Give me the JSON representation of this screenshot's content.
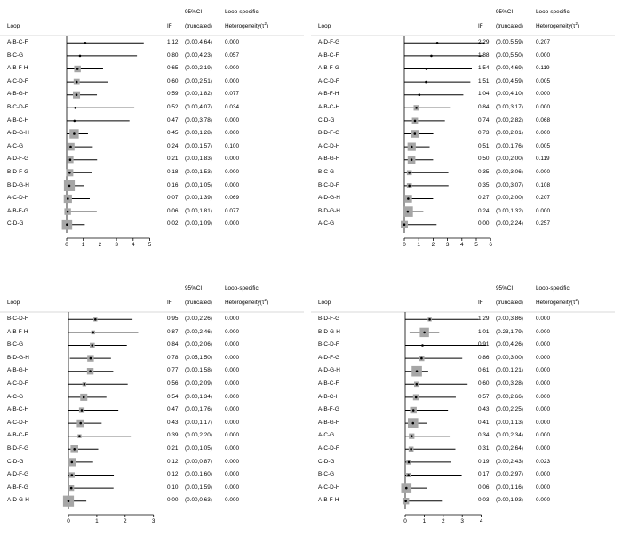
{
  "headers": {
    "loop": "Loop",
    "if": "IF",
    "ci_line1": "95%CI",
    "ci_line2": "(truncated)",
    "het_line1": "Loop-specific",
    "het_line2": "Heterogeneity(τ",
    "het_sup": "2",
    "het_close": ")"
  },
  "chart_data": [
    {
      "type": "forest",
      "xticks": [
        0,
        1,
        2,
        3,
        4,
        5
      ],
      "xlim": [
        0,
        5
      ],
      "rows": [
        {
          "loop": "A-B-C-F",
          "if": 1.12,
          "if_text": "1.12",
          "lo": 0.0,
          "hi": 4.64,
          "ci_text": "(0.00,4.64)",
          "het_text": "0.000",
          "weight": 0.0
        },
        {
          "loop": "B-C-G",
          "if": 0.8,
          "if_text": "0.80",
          "lo": 0.0,
          "hi": 4.23,
          "ci_text": "(0.00,4.23)",
          "het_text": "0.057",
          "weight": 0.0
        },
        {
          "loop": "A-B-F-H",
          "if": 0.65,
          "if_text": "0.65",
          "lo": 0.0,
          "hi": 2.19,
          "ci_text": "(0.00,2.19)",
          "het_text": "0.000",
          "weight": 0.45
        },
        {
          "loop": "A-C-D-F",
          "if": 0.6,
          "if_text": "0.60",
          "lo": 0.0,
          "hi": 2.51,
          "ci_text": "(0.00,2.51)",
          "het_text": "0.000",
          "weight": 0.4
        },
        {
          "loop": "A-B-G-H",
          "if": 0.59,
          "if_text": "0.59",
          "lo": 0.0,
          "hi": 1.82,
          "ci_text": "(0.00,1.82)",
          "het_text": "0.077",
          "weight": 0.5
        },
        {
          "loop": "B-C-D-F",
          "if": 0.52,
          "if_text": "0.52",
          "lo": 0.0,
          "hi": 4.07,
          "ci_text": "(0.00,4.07)",
          "het_text": "0.034",
          "weight": 0.0
        },
        {
          "loop": "A-B-C-H",
          "if": 0.47,
          "if_text": "0.47",
          "lo": 0.0,
          "hi": 3.78,
          "ci_text": "(0.00,3.78)",
          "het_text": "0.000",
          "weight": 0.0
        },
        {
          "loop": "A-D-G-H",
          "if": 0.45,
          "if_text": "0.45",
          "lo": 0.0,
          "hi": 1.28,
          "ci_text": "(0.00,1.28)",
          "het_text": "0.000",
          "weight": 0.7
        },
        {
          "loop": "A-C-G",
          "if": 0.24,
          "if_text": "0.24",
          "lo": 0.0,
          "hi": 1.57,
          "ci_text": "(0.00,1.57)",
          "het_text": "0.100",
          "weight": 0.55
        },
        {
          "loop": "A-D-F-G",
          "if": 0.21,
          "if_text": "0.21",
          "lo": 0.0,
          "hi": 1.83,
          "ci_text": "(0.00,1.83)",
          "het_text": "0.000",
          "weight": 0.45
        },
        {
          "loop": "B-D-F-G",
          "if": 0.18,
          "if_text": "0.18",
          "lo": 0.0,
          "hi": 1.53,
          "ci_text": "(0.00,1.53)",
          "het_text": "0.000",
          "weight": 0.5
        },
        {
          "loop": "B-D-G-H",
          "if": 0.16,
          "if_text": "0.16",
          "lo": 0.0,
          "hi": 1.05,
          "ci_text": "(0.00,1.05)",
          "het_text": "0.000",
          "weight": 0.85
        },
        {
          "loop": "A-C-D-H",
          "if": 0.07,
          "if_text": "0.07",
          "lo": 0.0,
          "hi": 1.39,
          "ci_text": "(0.00,1.39)",
          "het_text": "0.069",
          "weight": 0.6
        },
        {
          "loop": "A-B-F-G",
          "if": 0.06,
          "if_text": "0.06",
          "lo": 0.0,
          "hi": 1.81,
          "ci_text": "(0.00,1.81)",
          "het_text": "0.077",
          "weight": 0.45
        },
        {
          "loop": "C-D-G",
          "if": 0.02,
          "if_text": "0.02",
          "lo": 0.0,
          "hi": 1.09,
          "ci_text": "(0.00,1.09)",
          "het_text": "0.000",
          "weight": 0.8
        }
      ]
    },
    {
      "type": "forest",
      "xticks": [
        0,
        1,
        2,
        3,
        4,
        5,
        6
      ],
      "xlim": [
        0,
        6
      ],
      "rows": [
        {
          "loop": "A-D-F-G",
          "if": 2.29,
          "if_text": "2.29",
          "lo": 0.0,
          "hi": 5.59,
          "ci_text": "(0.00,5.59)",
          "het_text": "0.207",
          "weight": 0.0
        },
        {
          "loop": "A-B-C-F",
          "if": 1.88,
          "if_text": "1.88",
          "lo": 0.0,
          "hi": 5.5,
          "ci_text": "(0.00,5.50)",
          "het_text": "0.000",
          "weight": 0.0
        },
        {
          "loop": "A-B-F-G",
          "if": 1.54,
          "if_text": "1.54",
          "lo": 0.0,
          "hi": 4.69,
          "ci_text": "(0.00,4.69)",
          "het_text": "0.119",
          "weight": 0.0
        },
        {
          "loop": "A-C-D-F",
          "if": 1.51,
          "if_text": "1.51",
          "lo": 0.0,
          "hi": 4.59,
          "ci_text": "(0.00,4.59)",
          "het_text": "0.005",
          "weight": 0.0
        },
        {
          "loop": "A-B-F-H",
          "if": 1.04,
          "if_text": "1.04",
          "lo": 0.0,
          "hi": 4.1,
          "ci_text": "(0.00,4.10)",
          "het_text": "0.000",
          "weight": 0.0
        },
        {
          "loop": "A-B-C-H",
          "if": 0.84,
          "if_text": "0.84",
          "lo": 0.0,
          "hi": 3.17,
          "ci_text": "(0.00,3.17)",
          "het_text": "0.000",
          "weight": 0.35
        },
        {
          "loop": "C-D-G",
          "if": 0.74,
          "if_text": "0.74",
          "lo": 0.0,
          "hi": 2.82,
          "ci_text": "(0.00,2.82)",
          "het_text": "0.068",
          "weight": 0.4
        },
        {
          "loop": "B-D-F-G",
          "if": 0.73,
          "if_text": "0.73",
          "lo": 0.0,
          "hi": 2.01,
          "ci_text": "(0.00,2.01)",
          "het_text": "0.000",
          "weight": 0.55
        },
        {
          "loop": "A-C-D-H",
          "if": 0.51,
          "if_text": "0.51",
          "lo": 0.0,
          "hi": 1.76,
          "ci_text": "(0.00,1.76)",
          "het_text": "0.005",
          "weight": 0.6
        },
        {
          "loop": "A-B-G-H",
          "if": 0.5,
          "if_text": "0.50",
          "lo": 0.0,
          "hi": 2.0,
          "ci_text": "(0.00,2.00)",
          "het_text": "0.119",
          "weight": 0.55
        },
        {
          "loop": "B-C-G",
          "if": 0.35,
          "if_text": "0.35",
          "lo": 0.0,
          "hi": 3.06,
          "ci_text": "(0.00,3.06)",
          "het_text": "0.000",
          "weight": 0.3
        },
        {
          "loop": "B-C-D-F",
          "if": 0.35,
          "if_text": "0.35",
          "lo": 0.0,
          "hi": 3.07,
          "ci_text": "(0.00,3.07)",
          "het_text": "0.108",
          "weight": 0.3
        },
        {
          "loop": "A-D-G-H",
          "if": 0.27,
          "if_text": "0.27",
          "lo": 0.0,
          "hi": 2.0,
          "ci_text": "(0.00,2.00)",
          "het_text": "0.207",
          "weight": 0.55
        },
        {
          "loop": "B-D-G-H",
          "if": 0.24,
          "if_text": "0.24",
          "lo": 0.0,
          "hi": 1.32,
          "ci_text": "(0.00,1.32)",
          "het_text": "0.000",
          "weight": 0.8
        },
        {
          "loop": "A-C-G",
          "if": 0.0,
          "if_text": "0.00",
          "lo": 0.0,
          "hi": 2.24,
          "ci_text": "(0.00,2.24)",
          "het_text": "0.257",
          "weight": 0.5
        }
      ]
    },
    {
      "type": "forest",
      "xticks": [
        0,
        1,
        2,
        3
      ],
      "xlim": [
        0,
        3
      ],
      "rows": [
        {
          "loop": "B-C-D-F",
          "if": 0.95,
          "if_text": "0.95",
          "lo": 0.0,
          "hi": 2.26,
          "ci_text": "(0.00,2.26)",
          "het_text": "0.000",
          "weight": 0.2
        },
        {
          "loop": "A-B-F-H",
          "if": 0.87,
          "if_text": "0.87",
          "lo": 0.0,
          "hi": 2.46,
          "ci_text": "(0.00,2.46)",
          "het_text": "0.000",
          "weight": 0.2
        },
        {
          "loop": "B-C-G",
          "if": 0.84,
          "if_text": "0.84",
          "lo": 0.0,
          "hi": 2.06,
          "ci_text": "(0.00,2.06)",
          "het_text": "0.000",
          "weight": 0.3
        },
        {
          "loop": "B-D-G-H",
          "if": 0.78,
          "if_text": "0.78",
          "lo": 0.05,
          "hi": 1.5,
          "ci_text": "(0.05,1.50)",
          "het_text": "0.000",
          "weight": 0.45
        },
        {
          "loop": "A-B-G-H",
          "if": 0.77,
          "if_text": "0.77",
          "lo": 0.0,
          "hi": 1.58,
          "ci_text": "(0.00,1.58)",
          "het_text": "0.000",
          "weight": 0.45
        },
        {
          "loop": "A-C-D-F",
          "if": 0.56,
          "if_text": "0.56",
          "lo": 0.0,
          "hi": 2.09,
          "ci_text": "(0.00,2.09)",
          "het_text": "0.000",
          "weight": 0.2
        },
        {
          "loop": "A-C-G",
          "if": 0.54,
          "if_text": "0.54",
          "lo": 0.0,
          "hi": 1.34,
          "ci_text": "(0.00,1.34)",
          "het_text": "0.000",
          "weight": 0.5
        },
        {
          "loop": "A-B-C-H",
          "if": 0.47,
          "if_text": "0.47",
          "lo": 0.0,
          "hi": 1.76,
          "ci_text": "(0.00,1.76)",
          "het_text": "0.000",
          "weight": 0.35
        },
        {
          "loop": "A-C-D-H",
          "if": 0.43,
          "if_text": "0.43",
          "lo": 0.0,
          "hi": 1.17,
          "ci_text": "(0.00,1.17)",
          "het_text": "0.000",
          "weight": 0.55
        },
        {
          "loop": "A-B-C-F",
          "if": 0.39,
          "if_text": "0.39",
          "lo": 0.0,
          "hi": 2.2,
          "ci_text": "(0.00,2.20)",
          "het_text": "0.000",
          "weight": 0.2
        },
        {
          "loop": "B-D-F-G",
          "if": 0.21,
          "if_text": "0.21",
          "lo": 0.0,
          "hi": 1.05,
          "ci_text": "(0.00,1.05)",
          "het_text": "0.000",
          "weight": 0.55
        },
        {
          "loop": "C-D-G",
          "if": 0.12,
          "if_text": "0.12",
          "lo": 0.0,
          "hi": 0.87,
          "ci_text": "(0.00,0.87)",
          "het_text": "0.000",
          "weight": 0.6
        },
        {
          "loop": "A-D-F-G",
          "if": 0.12,
          "if_text": "0.12",
          "lo": 0.0,
          "hi": 1.6,
          "ci_text": "(0.00,1.60)",
          "het_text": "0.000",
          "weight": 0.35
        },
        {
          "loop": "A-B-F-G",
          "if": 0.1,
          "if_text": "0.10",
          "lo": 0.0,
          "hi": 1.59,
          "ci_text": "(0.00,1.59)",
          "het_text": "0.000",
          "weight": 0.35
        },
        {
          "loop": "A-D-G-H",
          "if": 0.0,
          "if_text": "0.00",
          "lo": 0.0,
          "hi": 0.63,
          "ci_text": "(0.00,0.63)",
          "het_text": "0.000",
          "weight": 0.85
        }
      ]
    },
    {
      "type": "forest",
      "xticks": [
        0,
        1,
        2,
        3,
        4
      ],
      "xlim": [
        0,
        4
      ],
      "rows": [
        {
          "loop": "B-D-F-G",
          "if": 1.29,
          "if_text": "1.29",
          "lo": 0.0,
          "hi": 3.86,
          "ci_text": "(0.00,3.86)",
          "het_text": "0.000",
          "weight": 0.2
        },
        {
          "loop": "B-D-G-H",
          "if": 1.01,
          "if_text": "1.01",
          "lo": 0.23,
          "hi": 1.79,
          "ci_text": "(0.23,1.79)",
          "het_text": "0.000",
          "weight": 0.7
        },
        {
          "loop": "B-C-D-F",
          "if": 0.91,
          "if_text": "0.91",
          "lo": 0.0,
          "hi": 4.26,
          "ci_text": "(0.00,4.26)",
          "het_text": "0.000",
          "weight": 0.0
        },
        {
          "loop": "A-D-F-G",
          "if": 0.86,
          "if_text": "0.86",
          "lo": 0.0,
          "hi": 3.0,
          "ci_text": "(0.00,3.00)",
          "het_text": "0.000",
          "weight": 0.35
        },
        {
          "loop": "A-D-G-H",
          "if": 0.61,
          "if_text": "0.61",
          "lo": 0.0,
          "hi": 1.21,
          "ci_text": "(0.00,1.21)",
          "het_text": "0.000",
          "weight": 0.8
        },
        {
          "loop": "A-B-C-F",
          "if": 0.6,
          "if_text": "0.60",
          "lo": 0.0,
          "hi": 3.28,
          "ci_text": "(0.00,3.28)",
          "het_text": "0.000",
          "weight": 0.3
        },
        {
          "loop": "A-B-C-H",
          "if": 0.57,
          "if_text": "0.57",
          "lo": 0.0,
          "hi": 2.66,
          "ci_text": "(0.00,2.66)",
          "het_text": "0.000",
          "weight": 0.4
        },
        {
          "loop": "A-B-F-G",
          "if": 0.43,
          "if_text": "0.43",
          "lo": 0.0,
          "hi": 2.25,
          "ci_text": "(0.00,2.25)",
          "het_text": "0.000",
          "weight": 0.45
        },
        {
          "loop": "A-B-G-H",
          "if": 0.41,
          "if_text": "0.41",
          "lo": 0.0,
          "hi": 1.13,
          "ci_text": "(0.00,1.13)",
          "het_text": "0.000",
          "weight": 0.8
        },
        {
          "loop": "A-C-G",
          "if": 0.34,
          "if_text": "0.34",
          "lo": 0.0,
          "hi": 2.34,
          "ci_text": "(0.00,2.34)",
          "het_text": "0.000",
          "weight": 0.35
        },
        {
          "loop": "A-C-D-F",
          "if": 0.31,
          "if_text": "0.31",
          "lo": 0.0,
          "hi": 2.64,
          "ci_text": "(0.00,2.64)",
          "het_text": "0.000",
          "weight": 0.3
        },
        {
          "loop": "C-D-G",
          "if": 0.19,
          "if_text": "0.19",
          "lo": 0.0,
          "hi": 2.43,
          "ci_text": "(0.00,2.43)",
          "het_text": "0.023",
          "weight": 0.3
        },
        {
          "loop": "B-C-G",
          "if": 0.17,
          "if_text": "0.17",
          "lo": 0.0,
          "hi": 2.97,
          "ci_text": "(0.00,2.97)",
          "het_text": "0.000",
          "weight": 0.25
        },
        {
          "loop": "A-C-D-H",
          "if": 0.06,
          "if_text": "0.06",
          "lo": 0.0,
          "hi": 1.16,
          "ci_text": "(0.00,1.16)",
          "het_text": "0.000",
          "weight": 0.8
        },
        {
          "loop": "A-B-F-H",
          "if": 0.03,
          "if_text": "0.03",
          "lo": 0.0,
          "hi": 1.93,
          "ci_text": "(0.00,1.93)",
          "het_text": "0.000",
          "weight": 0.45
        }
      ]
    }
  ],
  "colors": {
    "square": "#a6a6a6",
    "line": "#000000",
    "axis": "#000000",
    "divider": "#d8d8d8"
  }
}
